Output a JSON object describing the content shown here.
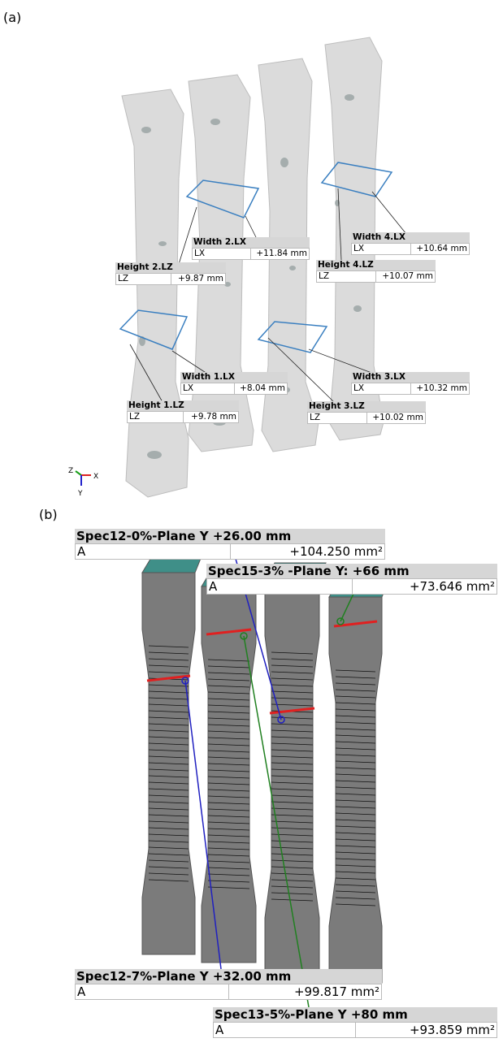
{
  "panel_a": {
    "label": "(a)",
    "axes": {
      "z": "Z",
      "x": "X",
      "y": "Y"
    },
    "measurements": [
      {
        "title": "Width 2.LX",
        "param": "LX",
        "value": "+11.84 mm"
      },
      {
        "title": "Height 2.LZ",
        "param": "LZ",
        "value": "+9.87 mm"
      },
      {
        "title": "Width 4.LX",
        "param": "LX",
        "value": "+10.64 mm"
      },
      {
        "title": "Height 4.LZ",
        "param": "LZ",
        "value": "+10.07 mm"
      },
      {
        "title": "Width 1.LX",
        "param": "LX",
        "value": "+8.04 mm"
      },
      {
        "title": "Width 3.LX",
        "param": "LX",
        "value": "+10.32 mm"
      },
      {
        "title": "Height 1.LZ",
        "param": "LZ",
        "value": "+9.78 mm"
      },
      {
        "title": "Height 3.LZ",
        "param": "LZ",
        "value": "+10.02 mm"
      }
    ]
  },
  "panel_b": {
    "label": "(b)",
    "measurements": [
      {
        "title": "Spec12-0%-Plane Y +26.00 mm",
        "param": "A",
        "value": "+104.250 mm²"
      },
      {
        "title": "Spec15-3% -Plane Y: +66 mm",
        "param": "A",
        "value": "+73.646 mm²"
      },
      {
        "title": "Spec12-7%-Plane Y +32.00 mm",
        "param": "A",
        "value": "+99.817 mm²"
      },
      {
        "title": "Spec13-5%-Plane Y +80 mm",
        "param": "A",
        "value": "+93.859 mm²"
      }
    ]
  }
}
